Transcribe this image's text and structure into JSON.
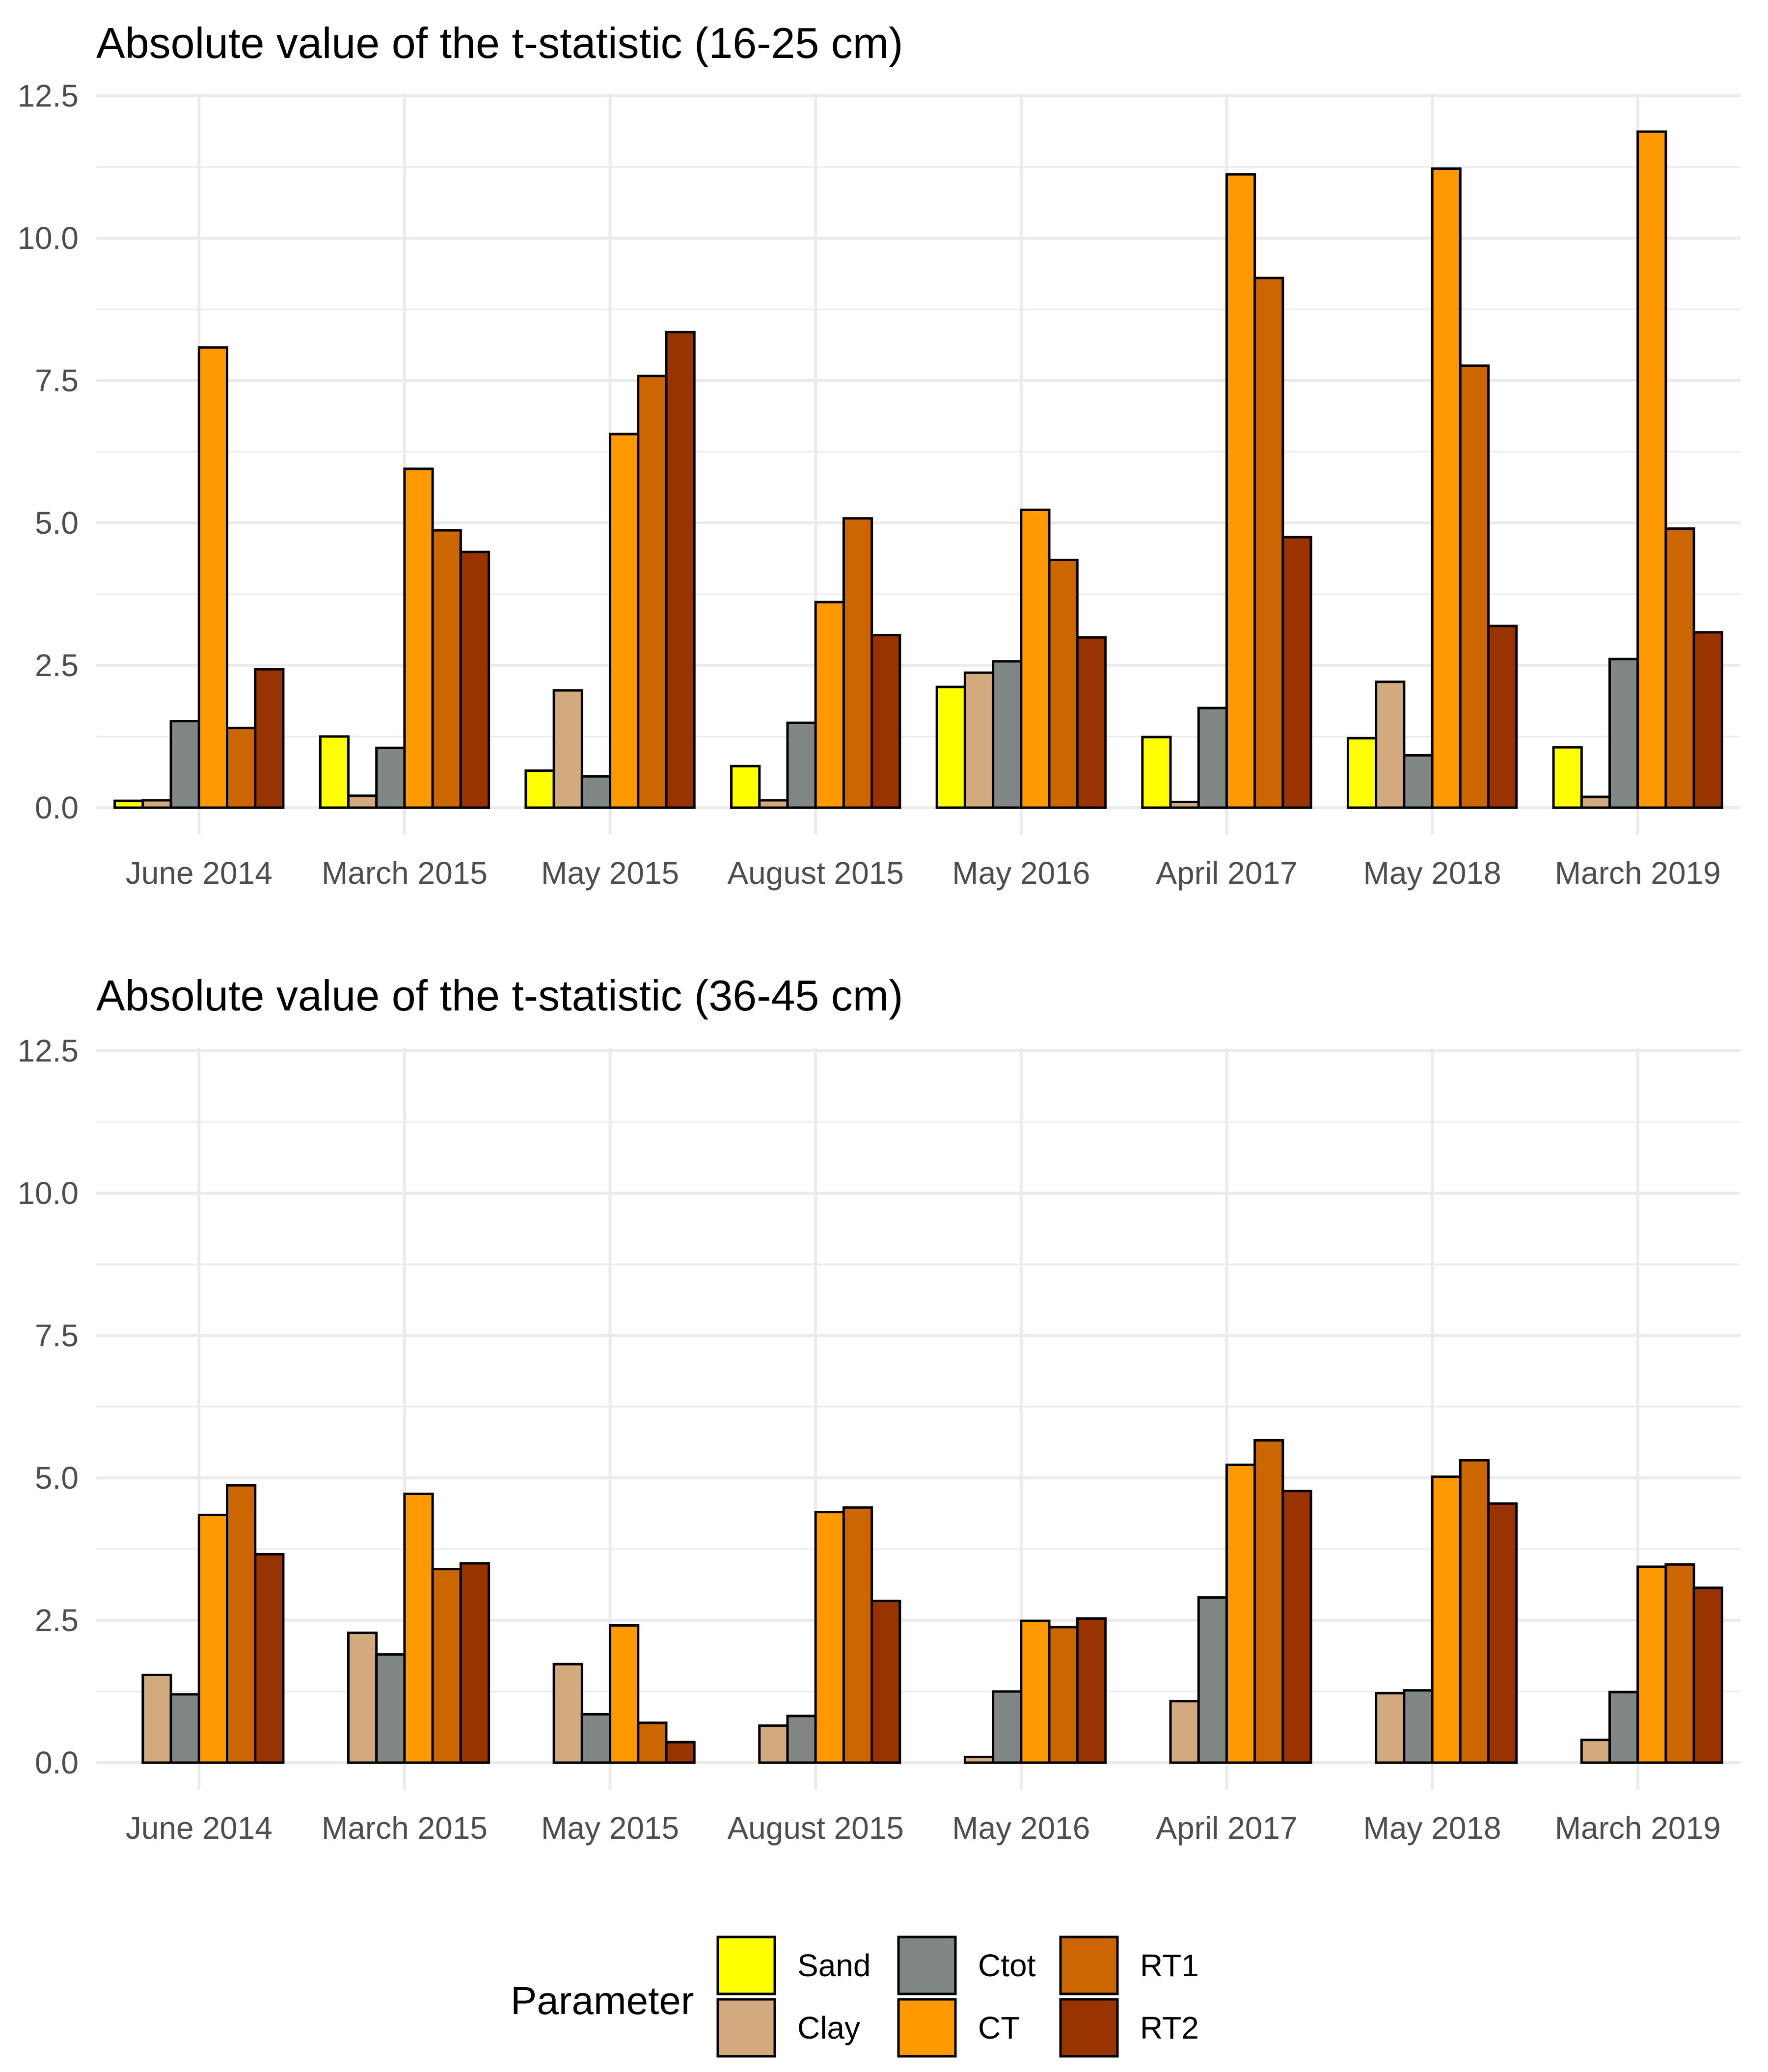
{
  "chart_data": [
    {
      "type": "bar",
      "title": "Absolute value of the t-statistic (16-25 cm)",
      "xlabel": "",
      "ylabel": "",
      "ylim": [
        0,
        12.5
      ],
      "yticks": [
        "0.0",
        "2.5",
        "5.0",
        "7.5",
        "10.0",
        "12.5"
      ],
      "grid": true,
      "categories": [
        "June 2014",
        "March 2015",
        "May 2015",
        "August 2015",
        "May 2016",
        "April 2017",
        "May 2018",
        "March 2019"
      ],
      "series": [
        {
          "name": "Sand",
          "color": "#FFFF00",
          "values": [
            0.12,
            1.25,
            0.65,
            0.73,
            2.12,
            1.24,
            1.22,
            1.06
          ]
        },
        {
          "name": "Clay",
          "color": "#D2AA7D",
          "values": [
            0.13,
            0.21,
            2.06,
            0.13,
            2.37,
            0.1,
            2.21,
            0.19
          ]
        },
        {
          "name": "Ctot",
          "color": "#808785",
          "values": [
            1.52,
            1.05,
            0.55,
            1.49,
            2.57,
            1.75,
            0.92,
            2.61
          ]
        },
        {
          "name": "CT",
          "color": "#FF9900",
          "values": [
            8.08,
            5.95,
            6.56,
            3.61,
            5.23,
            11.12,
            11.22,
            11.87
          ]
        },
        {
          "name": "RT1",
          "color": "#CC6600",
          "values": [
            1.4,
            4.87,
            7.58,
            5.08,
            4.35,
            9.3,
            7.76,
            4.9
          ]
        },
        {
          "name": "RT2",
          "color": "#993300",
          "values": [
            2.43,
            4.49,
            8.35,
            3.03,
            2.99,
            4.75,
            3.19,
            3.08
          ]
        }
      ]
    },
    {
      "type": "bar",
      "title": "Absolute value of the t-statistic (36-45 cm)",
      "xlabel": "",
      "ylabel": "",
      "ylim": [
        0,
        12.5
      ],
      "yticks": [
        "0.0",
        "2.5",
        "5.0",
        "7.5",
        "10.0",
        "12.5"
      ],
      "grid": true,
      "categories": [
        "June 2014",
        "March 2015",
        "May 2015",
        "August 2015",
        "May 2016",
        "April 2017",
        "May 2018",
        "March 2019"
      ],
      "series": [
        {
          "name": "Sand",
          "color": "#FFFF00",
          "values": [
            null,
            null,
            null,
            null,
            null,
            null,
            null,
            null
          ]
        },
        {
          "name": "Clay",
          "color": "#D2AA7D",
          "values": [
            1.54,
            2.28,
            1.73,
            0.65,
            0.1,
            1.08,
            1.22,
            0.4
          ]
        },
        {
          "name": "Ctot",
          "color": "#808785",
          "values": [
            1.2,
            1.9,
            0.85,
            0.82,
            1.25,
            2.9,
            1.27,
            1.24
          ]
        },
        {
          "name": "CT",
          "color": "#FF9900",
          "values": [
            4.35,
            4.72,
            2.41,
            4.4,
            2.49,
            5.23,
            5.02,
            3.44
          ]
        },
        {
          "name": "RT1",
          "color": "#CC6600",
          "values": [
            4.87,
            3.4,
            0.7,
            4.48,
            2.38,
            5.66,
            5.31,
            3.48
          ]
        },
        {
          "name": "RT2",
          "color": "#993300",
          "values": [
            3.66,
            3.5,
            0.36,
            2.84,
            2.53,
            4.77,
            4.55,
            3.07
          ]
        }
      ]
    }
  ],
  "legend": {
    "title": "Parameter",
    "position": "bottom",
    "items": [
      {
        "label": "Sand",
        "color": "#FFFF00"
      },
      {
        "label": "Clay",
        "color": "#D2AA7D"
      },
      {
        "label": "Ctot",
        "color": "#808785"
      },
      {
        "label": "CT",
        "color": "#FF9900"
      },
      {
        "label": "RT1",
        "color": "#CC6600"
      },
      {
        "label": "RT2",
        "color": "#993300"
      }
    ]
  }
}
